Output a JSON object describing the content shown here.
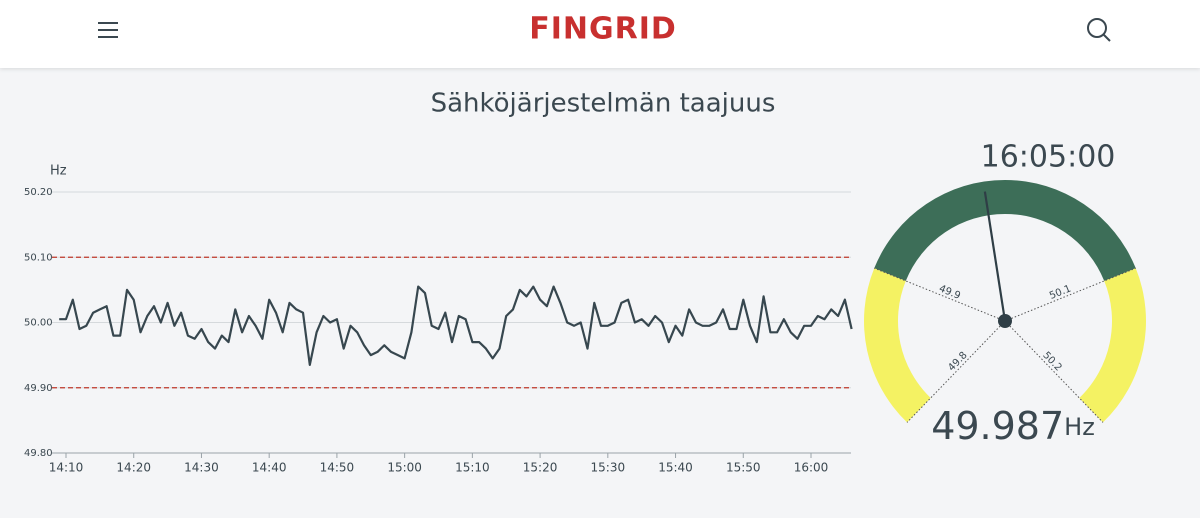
{
  "header": {
    "logo": "FINGRID"
  },
  "chart_data": {
    "type": "line",
    "title": "Sähköjärjestelmän taajuus",
    "y_label": "Hz",
    "color": "#37474f",
    "x": [
      "14:09",
      "14:10",
      "14:11",
      "14:12",
      "14:13",
      "14:14",
      "14:15",
      "14:16",
      "14:17",
      "14:18",
      "14:19",
      "14:20",
      "14:21",
      "14:22",
      "14:23",
      "14:24",
      "14:25",
      "14:26",
      "14:27",
      "14:28",
      "14:29",
      "14:30",
      "14:31",
      "14:32",
      "14:33",
      "14:34",
      "14:35",
      "14:36",
      "14:37",
      "14:38",
      "14:39",
      "14:40",
      "14:41",
      "14:42",
      "14:43",
      "14:44",
      "14:45",
      "14:46",
      "14:47",
      "14:48",
      "14:49",
      "14:50",
      "14:51",
      "14:52",
      "14:53",
      "14:54",
      "14:55",
      "14:56",
      "14:57",
      "14:58",
      "14:59",
      "15:00",
      "15:01",
      "15:02",
      "15:03",
      "15:04",
      "15:05",
      "15:06",
      "15:07",
      "15:08",
      "15:09",
      "15:10",
      "15:11",
      "15:12",
      "15:13",
      "15:14",
      "15:15",
      "15:16",
      "15:17",
      "15:18",
      "15:19",
      "15:20",
      "15:21",
      "15:22",
      "15:23",
      "15:24",
      "15:25",
      "15:26",
      "15:27",
      "15:28",
      "15:29",
      "15:30",
      "15:31",
      "15:32",
      "15:33",
      "15:34",
      "15:35",
      "15:36",
      "15:37",
      "15:38",
      "15:39",
      "15:40",
      "15:41",
      "15:42",
      "15:43",
      "15:44",
      "15:45",
      "15:46",
      "15:47",
      "15:48",
      "15:49",
      "15:50",
      "15:51",
      "15:52",
      "15:53",
      "15:54",
      "15:55",
      "15:56",
      "15:57",
      "15:58",
      "15:59",
      "16:00",
      "16:01",
      "16:02",
      "16:03",
      "16:04",
      "16:05",
      "16:06"
    ],
    "values": [
      50.005,
      50.005,
      50.035,
      49.99,
      49.995,
      50.015,
      50.02,
      50.025,
      49.98,
      49.98,
      50.05,
      50.035,
      49.985,
      50.01,
      50.025,
      50.0,
      50.03,
      49.995,
      50.015,
      49.98,
      49.975,
      49.99,
      49.97,
      49.96,
      49.98,
      49.97,
      50.02,
      49.985,
      50.01,
      49.995,
      49.975,
      50.035,
      50.015,
      49.985,
      50.03,
      50.02,
      50.015,
      49.935,
      49.985,
      50.01,
      50.0,
      50.005,
      49.96,
      49.995,
      49.985,
      49.965,
      49.95,
      49.955,
      49.965,
      49.955,
      49.95,
      49.945,
      49.985,
      50.055,
      50.045,
      49.995,
      49.99,
      50.015,
      49.97,
      50.01,
      50.005,
      49.97,
      49.97,
      49.96,
      49.945,
      49.96,
      50.01,
      50.02,
      50.05,
      50.04,
      50.055,
      50.035,
      50.025,
      50.055,
      50.03,
      50.0,
      49.995,
      50.0,
      49.96,
      50.03,
      49.995,
      49.995,
      50.0,
      50.03,
      50.035,
      50.0,
      50.005,
      49.995,
      50.01,
      50.0,
      49.97,
      49.995,
      49.98,
      50.02,
      50.0,
      49.995,
      49.995,
      50.0,
      50.02,
      49.99,
      49.99,
      50.035,
      49.995,
      49.97,
      50.04,
      49.985,
      49.985,
      50.005,
      49.985,
      49.975,
      49.995,
      49.995,
      50.01,
      50.005,
      50.02,
      50.01,
      50.035,
      49.99
    ],
    "xticks": [
      "14:10",
      "14:20",
      "14:30",
      "14:40",
      "14:50",
      "15:00",
      "15:10",
      "15:20",
      "15:30",
      "15:40",
      "15:50",
      "16:00"
    ],
    "ylim": [
      49.8,
      50.2
    ],
    "yticks": [
      {
        "value": 49.8,
        "label": "49.80"
      },
      {
        "value": 49.9,
        "label": "49.90"
      },
      {
        "value": 50.0,
        "label": "50.00"
      },
      {
        "value": 50.1,
        "label": "50.10"
      },
      {
        "value": 50.2,
        "label": "50.20"
      }
    ],
    "limit_lines": [
      49.9,
      50.1
    ],
    "limit_color": "#c0392b",
    "grid": true
  },
  "gauge": {
    "time": "16:05:00",
    "value": 49.987,
    "unit": "Hz",
    "range": [
      49.8,
      50.2
    ],
    "ticks": [
      49.8,
      49.9,
      50.1,
      50.2
    ],
    "normal_band": [
      49.9,
      50.1
    ],
    "normal_color": "#3d6e58",
    "outer_color": "#f4f263"
  }
}
